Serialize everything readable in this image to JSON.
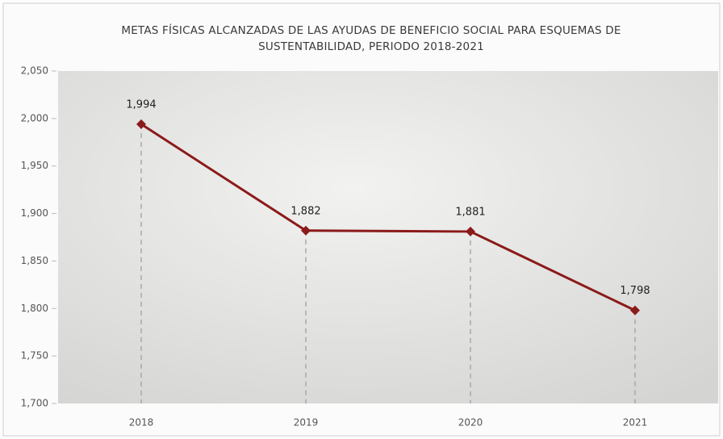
{
  "chart_data": {
    "type": "line",
    "title": [
      "METAS FÍSICAS ALCANZADAS DE LAS AYUDAS DE BENEFICIO SOCIAL PARA ESQUEMAS DE",
      "SUSTENTABILIDAD, PERIODO 2018-2021"
    ],
    "categories": [
      "2018",
      "2019",
      "2020",
      "2021"
    ],
    "values": [
      1994,
      1882,
      1881,
      1798
    ],
    "value_labels": [
      "1,994",
      "1,882",
      "1,881",
      "1,798"
    ],
    "color": "#8b1a1a",
    "ylim": [
      1700,
      2050
    ],
    "yticks": [
      {
        "value": 1700,
        "label": "1,700"
      },
      {
        "value": 1750,
        "label": "1,750"
      },
      {
        "value": 1800,
        "label": "1,800"
      },
      {
        "value": 1850,
        "label": "1,850"
      },
      {
        "value": 1900,
        "label": "1,900"
      },
      {
        "value": 1950,
        "label": "1,950"
      },
      {
        "value": 2000,
        "label": "2,000"
      },
      {
        "value": 2050,
        "label": "2,050"
      }
    ],
    "grid": false,
    "drop_lines": true
  }
}
